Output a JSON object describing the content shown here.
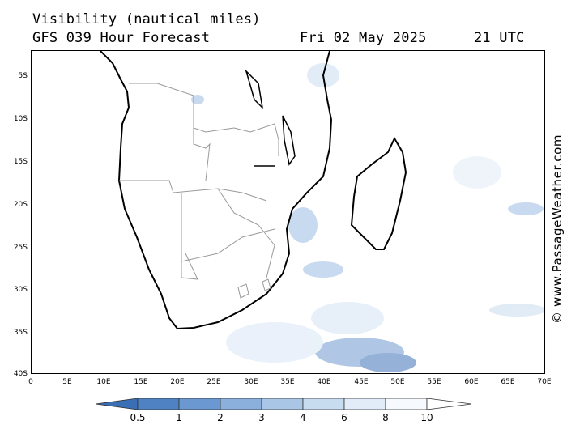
{
  "header": {
    "title_line1": "Visibility (nautical miles)",
    "title_line2": "GFS 039 Hour Forecast",
    "date": "Fri 02 May 2025",
    "time": "21 UTC"
  },
  "watermark": "© www.PassageWeather.com",
  "map": {
    "lat_labels": [
      "5S",
      "10S",
      "15S",
      "20S",
      "25S",
      "30S",
      "35S",
      "40S"
    ],
    "lon_labels": [
      "0",
      "5E",
      "10E",
      "15E",
      "20E",
      "25E",
      "30E",
      "35E",
      "40E",
      "45E",
      "50E",
      "55E",
      "60E",
      "65E",
      "70E"
    ]
  },
  "legend": {
    "labels": [
      "0.5",
      "1",
      "2",
      "3",
      "4",
      "6",
      "8",
      "10"
    ],
    "colors": [
      "#3a6fb5",
      "#4f82c3",
      "#6b98d0",
      "#8cb0dc",
      "#aac6e6",
      "#c8dcf0",
      "#e2ecf8",
      "#f6f9fd",
      "#ffffff"
    ]
  }
}
